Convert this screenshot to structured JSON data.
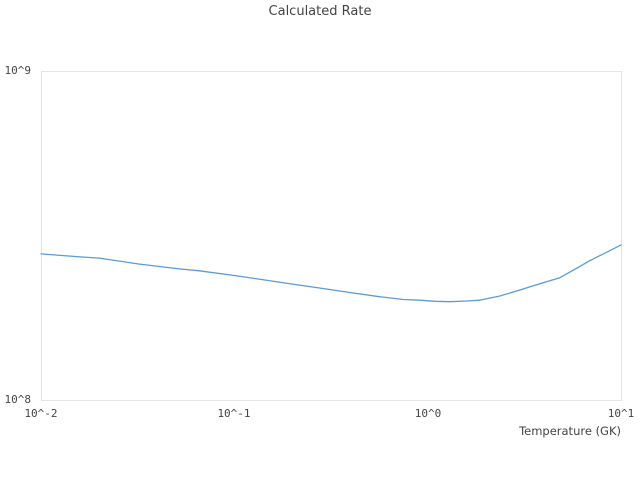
{
  "chart_data": {
    "type": "line",
    "title": "Calculated Rate",
    "xlabel": "Temperature (GK)",
    "ylabel": "",
    "x_scale": "log",
    "y_scale": "log",
    "xlim": [
      0.01,
      10
    ],
    "ylim": [
      100000000.0,
      1000000000.0
    ],
    "grid": false,
    "legend": false,
    "x_ticks": [
      {
        "value": 0.01,
        "label": "10^-2"
      },
      {
        "value": 0.1,
        "label": "10^-1"
      },
      {
        "value": 1,
        "label": "10^0"
      },
      {
        "value": 10,
        "label": "10^1"
      }
    ],
    "y_ticks": [
      {
        "value": 100000000.0,
        "label": "10^8"
      },
      {
        "value": 1000000000.0,
        "label": "10^9"
      }
    ],
    "series": [
      {
        "name": "calculated-rate",
        "color": "#5b9bd5",
        "x": [
          0.01,
          0.015,
          0.02,
          0.032,
          0.05,
          0.066,
          0.1,
          0.134,
          0.2,
          0.276,
          0.4,
          0.563,
          0.75,
          0.91,
          1.1,
          1.3,
          1.6,
          1.85,
          2.36,
          3.0,
          3.48,
          4.8,
          5.8,
          6.87,
          8.0,
          9.0,
          10.0
        ],
        "y": [
          278000000.0,
          273000000.0,
          270000000.0,
          259000000.0,
          251000000.0,
          247000000.0,
          239000000.0,
          233000000.0,
          225000000.0,
          219000000.0,
          212000000.0,
          206000000.0,
          202000000.0,
          201000000.0,
          199500000.0,
          199000000.0,
          200000000.0,
          201000000.0,
          207000000.0,
          216000000.0,
          222000000.0,
          235000000.0,
          250000000.0,
          265000000.0,
          277000000.0,
          287000000.0,
          296000000.0
        ]
      }
    ]
  },
  "colors": {
    "background": "#ffffff",
    "outline": "#e5e5e5",
    "text": "#444444",
    "line": "#5b9bd5"
  }
}
